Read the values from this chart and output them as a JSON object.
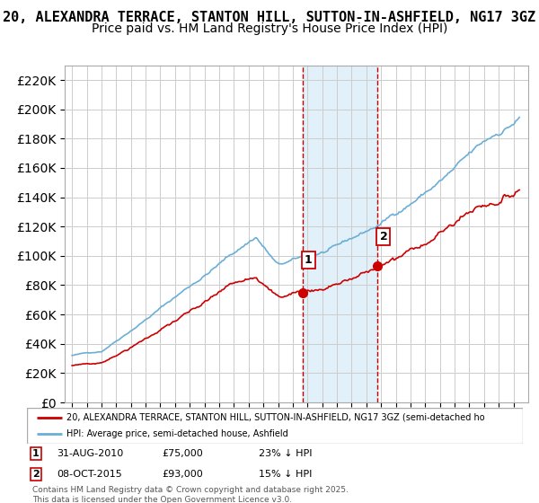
{
  "title": "20, ALEXANDRA TERRACE, STANTON HILL, SUTTON-IN-ASHFIELD, NG17 3GZ",
  "subtitle": "Price paid vs. HM Land Registry's House Price Index (HPI)",
  "sale1_date": "31-AUG-2010",
  "sale1_price": 75000,
  "sale1_label": "23% ↓ HPI",
  "sale2_date": "08-OCT-2015",
  "sale2_price": 93000,
  "sale2_label": "15% ↓ HPI",
  "sale1_x": 2010.66,
  "sale2_x": 2015.77,
  "legend_line1": "20, ALEXANDRA TERRACE, STANTON HILL, SUTTON-IN-ASHFIELD, NG17 3GZ (semi-detached ho",
  "legend_line2": "HPI: Average price, semi-detached house, Ashfield",
  "footer": "Contains HM Land Registry data © Crown copyright and database right 2025.\nThis data is licensed under the Open Government Licence v3.0.",
  "ylim": [
    0,
    230000
  ],
  "yticks": [
    0,
    20000,
    40000,
    60000,
    80000,
    100000,
    120000,
    140000,
    160000,
    180000,
    200000,
    220000
  ],
  "hpi_color": "#6baed6",
  "price_color": "#cc0000",
  "shade_color": "#d0e8f5",
  "marker_color": "#cc0000",
  "vline_color": "#cc0000",
  "title_fontsize": 11,
  "subtitle_fontsize": 10,
  "xmin": 1994.5,
  "xmax": 2026.0,
  "start_year": 1995,
  "end_year": 2025
}
